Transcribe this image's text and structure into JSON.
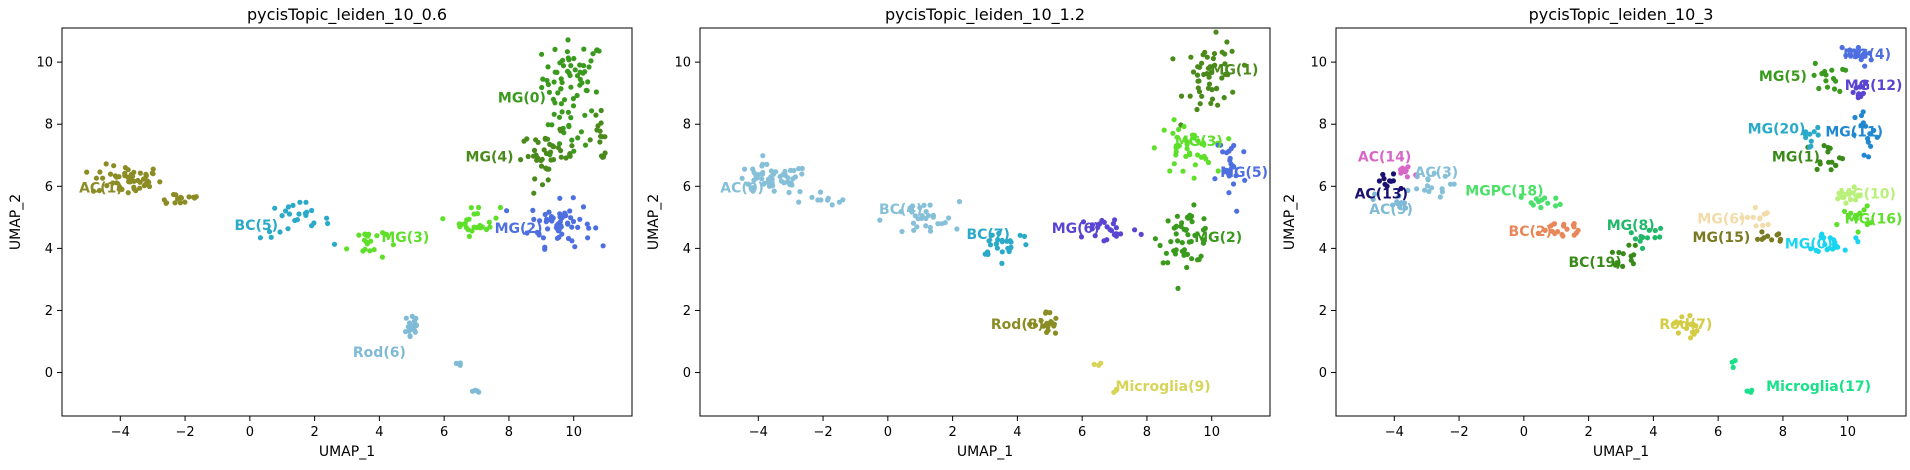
{
  "chart_data": [
    {
      "type": "scatter",
      "title": "pycisTopic_leiden_10_0.6",
      "xlabel": "UMAP_1",
      "ylabel": "UMAP_2",
      "xlim": [
        -5.8,
        11.8
      ],
      "ylim": [
        -1.4,
        11.1
      ],
      "xticks": [
        -4,
        -2,
        0,
        2,
        4,
        6,
        8,
        10
      ],
      "yticks": [
        0,
        2,
        4,
        6,
        8,
        10
      ],
      "clusters": [
        {
          "label": "MG(0)",
          "color": "#3a9a1e",
          "label_pos": [
            8.4,
            8.7
          ],
          "regions": [
            [
              10.0,
              9.5,
              0.8,
              1.0,
              60
            ],
            [
              9.6,
              7.6,
              0.6,
              0.8,
              20
            ]
          ]
        },
        {
          "label": "AC(1)",
          "color": "#8b8c24",
          "label_pos": [
            -4.6,
            5.8
          ],
          "regions": [
            [
              -3.8,
              6.2,
              0.9,
              0.4,
              55
            ],
            [
              -2.2,
              5.6,
              0.7,
              0.2,
              15
            ]
          ]
        },
        {
          "label": "MG(2)",
          "color": "#4e6fe0",
          "label_pos": [
            8.3,
            4.5
          ],
          "regions": [
            [
              9.6,
              4.8,
              0.8,
              0.6,
              60
            ]
          ]
        },
        {
          "label": "MG(3)",
          "color": "#5ee02a",
          "label_pos": [
            4.8,
            4.2
          ],
          "regions": [
            [
              3.6,
              4.2,
              0.5,
              0.5,
              20
            ],
            [
              7.0,
              4.9,
              0.6,
              0.4,
              25
            ]
          ]
        },
        {
          "label": "MG(4)",
          "color": "#4a8a1a",
          "label_pos": [
            7.4,
            6.8
          ],
          "regions": [
            [
              9.2,
              7.0,
              0.7,
              0.6,
              40
            ],
            [
              10.8,
              7.6,
              0.3,
              0.6,
              15
            ]
          ]
        },
        {
          "label": "BC(5)",
          "color": "#2aaac8",
          "label_pos": [
            0.2,
            4.6
          ],
          "regions": [
            [
              1.4,
              4.9,
              0.9,
              0.5,
              25
            ]
          ]
        },
        {
          "label": "Rod(6)",
          "color": "#7fbad6",
          "label_pos": [
            4.0,
            0.5
          ],
          "regions": [
            [
              5.0,
              1.5,
              0.2,
              0.5,
              20
            ],
            [
              6.5,
              0.3,
              0.1,
              0.1,
              3
            ],
            [
              7.0,
              -0.6,
              0.1,
              0.1,
              4
            ]
          ]
        }
      ]
    },
    {
      "type": "scatter",
      "title": "pycisTopic_leiden_10_1.2",
      "xlabel": "UMAP_1",
      "ylabel": "UMAP_2",
      "xlim": [
        -5.8,
        11.8
      ],
      "ylim": [
        -1.4,
        11.1
      ],
      "xticks": [
        -4,
        -2,
        0,
        2,
        4,
        6,
        8,
        10
      ],
      "yticks": [
        0,
        2,
        4,
        6,
        8,
        10
      ],
      "clusters": [
        {
          "label": "AC(0)",
          "color": "#85c0d8",
          "label_pos": [
            -4.5,
            5.8
          ],
          "regions": [
            [
              -3.6,
              6.2,
              1.0,
              0.4,
              55
            ],
            [
              -1.8,
              5.6,
              0.6,
              0.2,
              10
            ]
          ]
        },
        {
          "label": "MG(1)",
          "color": "#4a8a1a",
          "label_pos": [
            10.7,
            9.6
          ],
          "regions": [
            [
              10.0,
              9.5,
              0.7,
              1.0,
              50
            ]
          ]
        },
        {
          "label": "MG(2)",
          "color": "#3a9a1e",
          "label_pos": [
            10.2,
            4.2
          ],
          "regions": [
            [
              9.2,
              4.4,
              0.7,
              0.7,
              50
            ]
          ]
        },
        {
          "label": "MG(3)",
          "color": "#5ee02a",
          "label_pos": [
            9.6,
            7.3
          ],
          "regions": [
            [
              9.2,
              7.2,
              0.7,
              0.7,
              40
            ]
          ]
        },
        {
          "label": "BC(4)",
          "color": "#85c0d8",
          "label_pos": [
            0.4,
            5.1
          ],
          "regions": [
            [
              1.0,
              4.9,
              1.0,
              0.5,
              30
            ]
          ]
        },
        {
          "label": "MG(5)",
          "color": "#4e6fe0",
          "label_pos": [
            11.0,
            6.3
          ],
          "regions": [
            [
              10.6,
              6.5,
              0.4,
              1.2,
              25
            ]
          ]
        },
        {
          "label": "MG(6)",
          "color": "#5a44d2",
          "label_pos": [
            5.8,
            4.5
          ],
          "regions": [
            [
              6.8,
              4.6,
              0.8,
              0.4,
              25
            ]
          ]
        },
        {
          "label": "BC(7)",
          "color": "#2aaac8",
          "label_pos": [
            3.1,
            4.3
          ],
          "regions": [
            [
              3.6,
              4.2,
              0.7,
              0.4,
              25
            ]
          ]
        },
        {
          "label": "Rod(8)",
          "color": "#8b8c24",
          "label_pos": [
            4.0,
            1.4
          ],
          "regions": [
            [
              4.9,
              1.5,
              0.3,
              0.4,
              20
            ]
          ]
        },
        {
          "label": "Microglia(9)",
          "color": "#d8d458",
          "label_pos": [
            8.5,
            -0.6
          ],
          "regions": [
            [
              6.5,
              0.3,
              0.1,
              0.1,
              3
            ],
            [
              7.0,
              -0.6,
              0.1,
              0.1,
              3
            ]
          ]
        }
      ]
    },
    {
      "type": "scatter",
      "title": "pycisTopic_leiden_10_3",
      "xlabel": "UMAP_1",
      "ylabel": "UMAP_2",
      "xlim": [
        -5.8,
        11.8
      ],
      "ylim": [
        -1.4,
        11.1
      ],
      "xticks": [
        -4,
        -2,
        0,
        2,
        4,
        6,
        8,
        10
      ],
      "yticks": [
        0,
        2,
        4,
        6,
        8,
        10
      ],
      "clusters": [
        {
          "label": "MG(0)",
          "color": "#1ad4f0",
          "label_pos": [
            8.8,
            4.0
          ],
          "regions": [
            [
              9.6,
              4.2,
              0.5,
              0.3,
              20
            ]
          ]
        },
        {
          "label": "MG(1)",
          "color": "#3a8a1a",
          "label_pos": [
            8.4,
            6.8
          ],
          "regions": [
            [
              9.4,
              7.0,
              0.4,
              0.4,
              15
            ]
          ]
        },
        {
          "label": "BC(2)",
          "color": "#e8885a",
          "label_pos": [
            0.2,
            4.4
          ],
          "regions": [
            [
              1.0,
              4.6,
              0.9,
              0.3,
              20
            ]
          ]
        },
        {
          "label": "AC(3)",
          "color": "#85c0d8",
          "label_pos": [
            -2.7,
            6.3
          ],
          "regions": [
            [
              -3.0,
              6.0,
              0.6,
              0.3,
              15
            ]
          ]
        },
        {
          "label": "MG(4)",
          "color": "#4e6fe0",
          "label_pos": [
            10.6,
            10.1
          ],
          "regions": [
            [
              10.2,
              10.2,
              0.5,
              0.3,
              15
            ]
          ]
        },
        {
          "label": "MG(5)",
          "color": "#3a9a1e",
          "label_pos": [
            8.0,
            9.4
          ],
          "regions": [
            [
              9.4,
              9.5,
              0.4,
              0.4,
              15
            ]
          ]
        },
        {
          "label": "MG(6)",
          "color": "#f2dcaa",
          "label_pos": [
            6.1,
            4.8
          ],
          "regions": [
            [
              7.2,
              5.0,
              0.4,
              0.3,
              12
            ]
          ]
        },
        {
          "label": "Rod(7)",
          "color": "#d4cc44",
          "label_pos": [
            5.0,
            1.4
          ],
          "regions": [
            [
              5.0,
              1.5,
              0.3,
              0.4,
              15
            ]
          ]
        },
        {
          "label": "MG(8)",
          "color": "#22b86a",
          "label_pos": [
            3.3,
            4.6
          ],
          "regions": [
            [
              3.8,
              4.4,
              0.5,
              0.3,
              12
            ]
          ]
        },
        {
          "label": "AC(9)",
          "color": "#7fbad6",
          "label_pos": [
            -4.1,
            5.1
          ],
          "regions": [
            [
              -4.0,
              5.5,
              0.5,
              0.3,
              12
            ]
          ]
        },
        {
          "label": "MG(10)",
          "color": "#b8f07a",
          "label_pos": [
            10.6,
            5.6
          ],
          "regions": [
            [
              10.0,
              5.6,
              0.4,
              0.3,
              12
            ]
          ]
        },
        {
          "label": "MG(11)",
          "color": "#2088d0",
          "label_pos": [
            10.2,
            7.6
          ],
          "regions": [
            [
              10.6,
              7.6,
              0.3,
              0.7,
              15
            ]
          ]
        },
        {
          "label": "MG(12)",
          "color": "#5a44d2",
          "label_pos": [
            10.8,
            9.1
          ],
          "regions": [
            [
              10.4,
              9.0,
              0.3,
              0.3,
              10
            ]
          ]
        },
        {
          "label": "AC(13)",
          "color": "#1a1070",
          "label_pos": [
            -4.4,
            5.6
          ],
          "regions": [
            [
              -4.2,
              6.1,
              0.3,
              0.3,
              10
            ]
          ]
        },
        {
          "label": "AC(14)",
          "color": "#d868c8",
          "label_pos": [
            -4.3,
            6.8
          ],
          "regions": [
            [
              -3.6,
              6.5,
              0.4,
              0.2,
              12
            ]
          ]
        },
        {
          "label": "MG(15)",
          "color": "#7a7a22",
          "label_pos": [
            6.1,
            4.2
          ],
          "regions": [
            [
              7.6,
              4.4,
              0.4,
              0.2,
              10
            ]
          ]
        },
        {
          "label": "MG(16)",
          "color": "#5ee02a",
          "label_pos": [
            10.8,
            4.8
          ],
          "regions": [
            [
              10.2,
              5.0,
              0.4,
              0.3,
              12
            ]
          ]
        },
        {
          "label": "Microglia(17)",
          "color": "#1ae08a",
          "label_pos": [
            9.1,
            -0.6
          ],
          "regions": [
            [
              6.5,
              0.3,
              0.1,
              0.1,
              3
            ],
            [
              7.0,
              -0.6,
              0.1,
              0.1,
              3
            ]
          ]
        },
        {
          "label": "MGPC(18)",
          "color": "#4ae06a",
          "label_pos": [
            -0.6,
            5.7
          ],
          "regions": [
            [
              0.6,
              5.5,
              0.6,
              0.2,
              12
            ]
          ]
        },
        {
          "label": "BC(19)",
          "color": "#3a8a1a",
          "label_pos": [
            2.2,
            3.4
          ],
          "regions": [
            [
              3.2,
              3.8,
              0.4,
              0.3,
              12
            ]
          ]
        },
        {
          "label": "MG(20)",
          "color": "#2aaac8",
          "label_pos": [
            7.8,
            7.7
          ],
          "regions": [
            [
              8.8,
              7.6,
              0.3,
              0.3,
              10
            ]
          ]
        }
      ]
    }
  ]
}
